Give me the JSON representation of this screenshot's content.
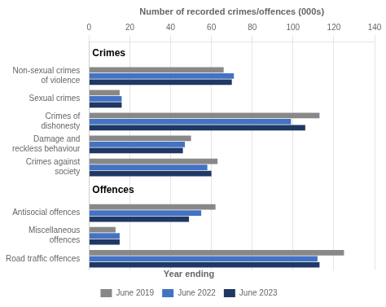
{
  "chart_data": {
    "type": "bar",
    "orientation": "horizontal",
    "x_label": "Number of recorded crimes/offences (000s)",
    "categories": [
      "Road traffic offences",
      "Miscellaneous\noffences",
      "Antisocial offences",
      null,
      "Crimes against\nsociety",
      "Damage and\nreckless behaviour",
      "Crimes of\ndishonesty",
      "Sexual crimes",
      "Non-sexual crimes\nof violence",
      null
    ],
    "series": [
      {
        "name": "June 2019",
        "color": "#888888",
        "values": [
          125,
          13,
          62,
          null,
          63,
          50,
          113,
          15,
          66,
          null
        ]
      },
      {
        "name": "June 2022",
        "color": "#4472c4",
        "values": [
          112,
          15,
          55,
          null,
          58,
          47,
          99,
          16,
          71,
          null
        ]
      },
      {
        "name": "June 2023",
        "color": "#1f3864",
        "values": [
          113,
          15,
          49,
          null,
          60,
          46,
          106,
          16,
          70,
          null
        ]
      }
    ],
    "xlim": [
      0,
      140
    ],
    "xticks": [
      0,
      20,
      40,
      60,
      80,
      100,
      120,
      140
    ],
    "grid": true,
    "legend": "bottom",
    "legend_title": "Year ending",
    "annotations": [
      {
        "text": "Crimes",
        "y": 9
      },
      {
        "text": "Offences",
        "y": 3
      }
    ]
  }
}
